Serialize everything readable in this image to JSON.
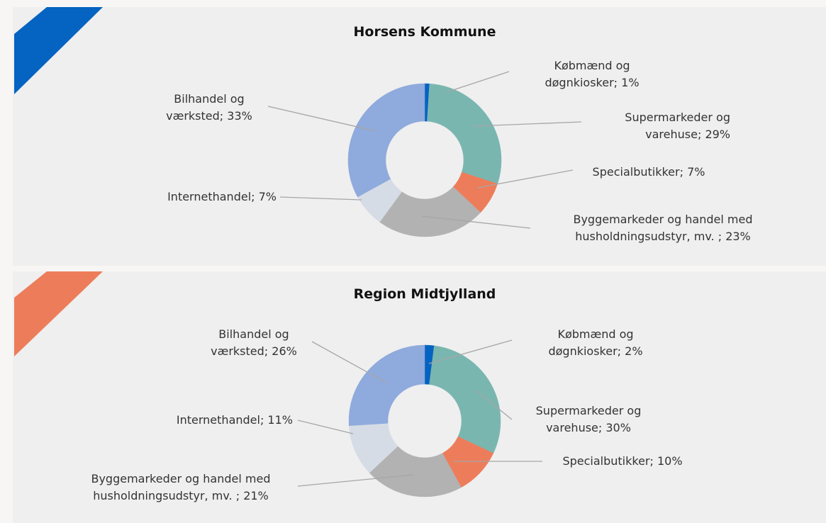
{
  "chart_data": [
    {
      "type": "pie",
      "title": "Horsens Kommune",
      "values": [
        1,
        29,
        7,
        23,
        7,
        33
      ],
      "value_labels": [
        "Købmænd og døgnkiosker; 1%",
        "Supermarkeder og varehuse; 29%",
        "Specialbutikker; 7%",
        "Byggemarkeder og handel med husholdningsudstyr, mv. ; 23%",
        "Internethandel; 7%",
        "Bilhandel og værksted; 33%"
      ],
      "colors": [
        "#0563c1",
        "#7ab6b0",
        "#ed7d5a",
        "#b2b2b2",
        "#d6dce5",
        "#8faadc"
      ]
    },
    {
      "type": "pie",
      "title": "Region Midtjylland",
      "values": [
        2,
        30,
        10,
        21,
        11,
        26
      ],
      "value_labels": [
        "Købmænd og døgnkiosker; 2%",
        "Supermarkeder og varehuse; 30%",
        "Specialbutikker; 10%",
        "Byggemarkeder og handel med husholdningsudstyr, mv. ; 21%",
        "Internethandel; 11%",
        "Bilhandel og værksted; 26%"
      ],
      "colors": [
        "#0563c1",
        "#7ab6b0",
        "#ed7d5a",
        "#b2b2b2",
        "#d6dce5",
        "#8faadc"
      ]
    }
  ]
}
